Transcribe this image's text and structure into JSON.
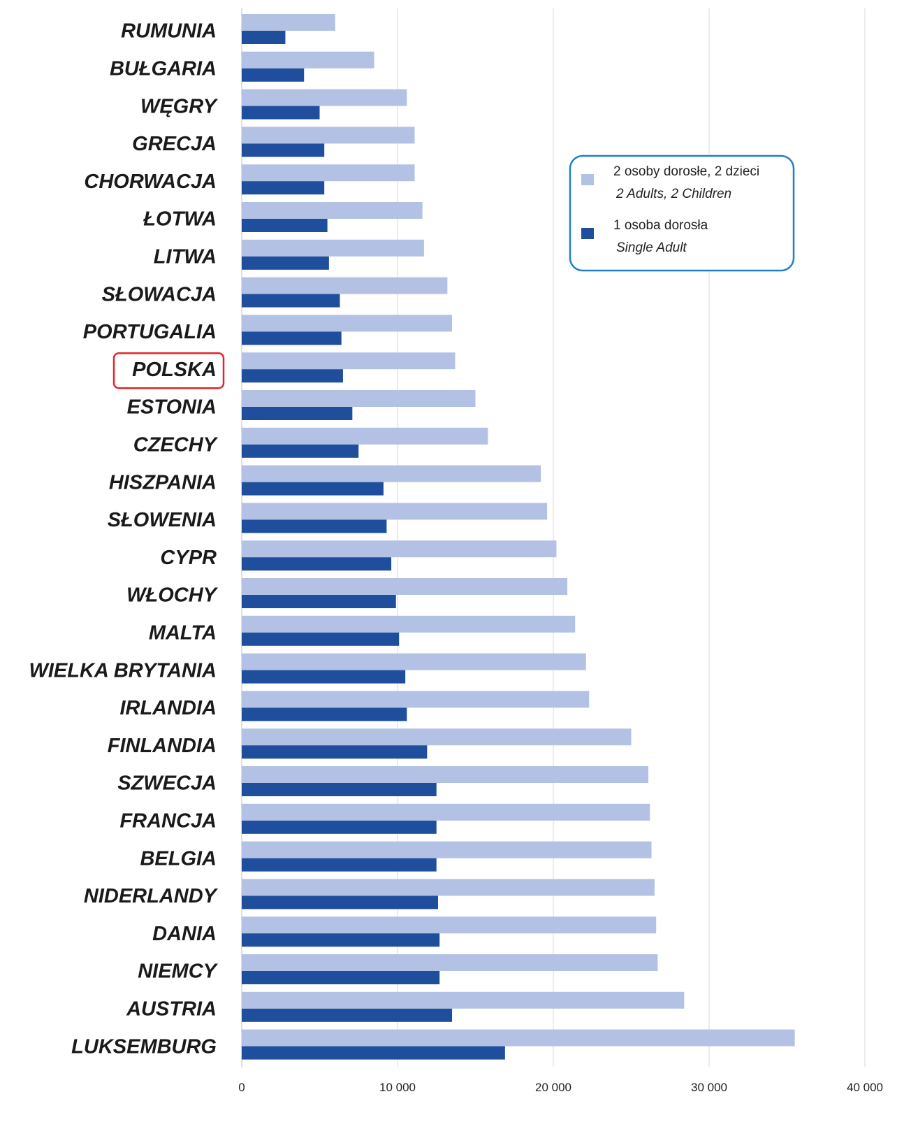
{
  "chart_data": {
    "type": "hbar",
    "categories": [
      "RUMUNIA",
      "BUŁGARIA",
      "WĘGRY",
      "GRECJA",
      "CHORWACJA",
      "ŁOTWA",
      "LITWA",
      "SŁOWACJA",
      "PORTUGALIA",
      "POLSKA",
      "ESTONIA",
      "CZECHY",
      "HISZPANIA",
      "SŁOWENIA",
      "CYPR",
      "WŁOCHY",
      "MALTA",
      "WIELKA BRYTANIA",
      "IRLANDIA",
      "FINLANDIA",
      "SZWECJA",
      "FRANCJA",
      "BELGIA",
      "NIDERLANDY",
      "DANIA",
      "NIEMCY",
      "AUSTRIA",
      "LUKSEMBURG"
    ],
    "series": [
      {
        "name": "2 osoby dorosłe, 2 dzieci",
        "name_en": "2 Adults, 2 Children",
        "color": "#b3c2e4",
        "values": [
          6000,
          8500,
          10600,
          11100,
          11100,
          11600,
          11700,
          13200,
          13500,
          13700,
          15000,
          15800,
          19200,
          19600,
          20200,
          20900,
          21400,
          22100,
          22300,
          25000,
          26100,
          26200,
          26300,
          26500,
          26600,
          26700,
          28400,
          35500
        ]
      },
      {
        "name": "1 osoba dorosła",
        "name_en": "Single Adult",
        "color": "#1f4e9c",
        "values": [
          2800,
          4000,
          5000,
          5300,
          5300,
          5500,
          5600,
          6300,
          6400,
          6500,
          7100,
          7500,
          9100,
          9300,
          9600,
          9900,
          10100,
          10500,
          10600,
          11900,
          12500,
          12500,
          12500,
          12600,
          12700,
          12700,
          13500,
          16900
        ]
      }
    ],
    "xlim": [
      0,
      40000
    ],
    "xticks": [
      0,
      {
        "value": 10000,
        "label": "10 000"
      },
      {
        "value": 20000,
        "label": "20 000"
      },
      {
        "value": 30000,
        "label": "30 000"
      },
      {
        "value": 40000,
        "label": "40 000"
      }
    ],
    "grid": true,
    "highlight": "POLSKA",
    "legend": "upper right"
  }
}
